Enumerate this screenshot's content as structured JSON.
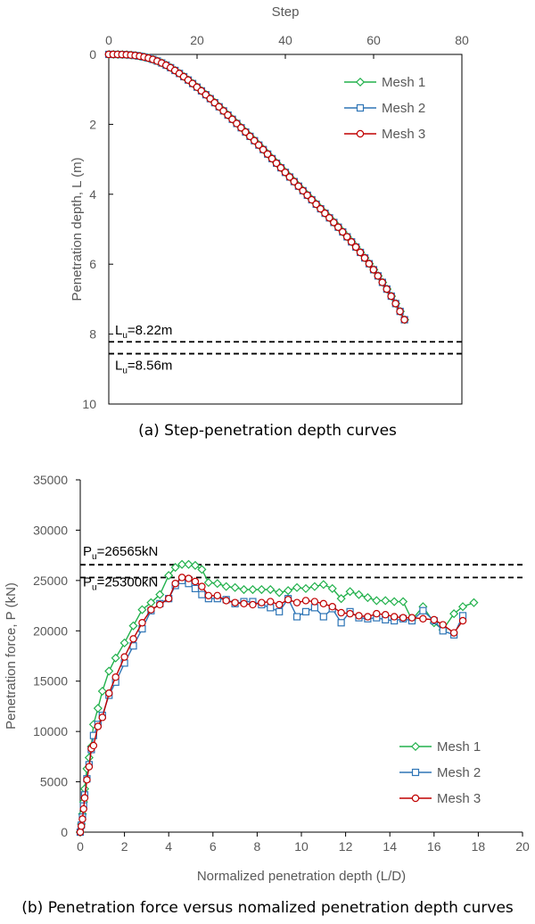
{
  "chart_data": [
    {
      "type": "line",
      "caption": "(a) Step-penetration depth curves",
      "xlabel": "Step",
      "ylabel": "Penetration depth, L (m)",
      "xlim": [
        0,
        80
      ],
      "ylim": [
        0,
        10
      ],
      "x_axis_position": "top",
      "y_inverted": true,
      "x_ticks": [
        0,
        20,
        40,
        60,
        80
      ],
      "y_ticks": [
        0,
        2,
        4,
        6,
        8,
        10
      ],
      "grid": false,
      "legend_position": "top-right",
      "series": [
        {
          "name": "Mesh 1",
          "color": "#22b14c",
          "marker": "diamond",
          "x": [
            0,
            1,
            2,
            3,
            4,
            5,
            6,
            7,
            8,
            9,
            10,
            11,
            12,
            13,
            14,
            15,
            16,
            17,
            18,
            19,
            20,
            21,
            22,
            23,
            24,
            25,
            26,
            27,
            28,
            29,
            30,
            31,
            32,
            33,
            34,
            35,
            36,
            37,
            38,
            39,
            40,
            41,
            42,
            43,
            44,
            45,
            46,
            47,
            48,
            49,
            50,
            51,
            52,
            53,
            54,
            55,
            56,
            57,
            58,
            59,
            60,
            61,
            62,
            63,
            64,
            65,
            66,
            67
          ],
          "y": [
            0,
            0,
            0.001,
            0.004,
            0.009,
            0.018,
            0.031,
            0.05,
            0.074,
            0.105,
            0.144,
            0.19,
            0.245,
            0.308,
            0.379,
            0.459,
            0.545,
            0.637,
            0.733,
            0.833,
            0.936,
            1.043,
            1.153,
            1.266,
            1.381,
            1.498,
            1.616,
            1.736,
            1.856,
            1.976,
            2.098,
            2.22,
            2.344,
            2.468,
            2.594,
            2.722,
            2.851,
            2.981,
            3.112,
            3.243,
            3.375,
            3.507,
            3.638,
            3.769,
            3.899,
            4.028,
            4.157,
            4.285,
            4.415,
            4.544,
            4.675,
            4.807,
            4.942,
            5.078,
            5.218,
            5.362,
            5.51,
            5.663,
            5.822,
            5.987,
            6.158,
            6.335,
            6.52,
            6.713,
            6.915,
            7.127,
            7.351,
            7.589
          ]
        },
        {
          "name": "Mesh 2",
          "color": "#2e75b6",
          "marker": "square",
          "x": [
            0,
            1,
            2,
            3,
            4,
            5,
            6,
            7,
            8,
            9,
            10,
            11,
            12,
            13,
            14,
            15,
            16,
            17,
            18,
            19,
            20,
            21,
            22,
            23,
            24,
            25,
            26,
            27,
            28,
            29,
            30,
            31,
            32,
            33,
            34,
            35,
            36,
            37,
            38,
            39,
            40,
            41,
            42,
            43,
            44,
            45,
            46,
            47,
            48,
            49,
            50,
            51,
            52,
            53,
            54,
            55,
            56,
            57,
            58,
            59,
            60,
            61,
            62,
            63,
            64,
            65,
            66,
            67
          ],
          "y": [
            0,
            0,
            0.001,
            0.004,
            0.009,
            0.018,
            0.031,
            0.05,
            0.074,
            0.105,
            0.144,
            0.19,
            0.245,
            0.308,
            0.379,
            0.459,
            0.545,
            0.637,
            0.733,
            0.833,
            0.936,
            1.043,
            1.153,
            1.266,
            1.381,
            1.498,
            1.616,
            1.736,
            1.856,
            1.976,
            2.098,
            2.22,
            2.344,
            2.468,
            2.594,
            2.722,
            2.851,
            2.981,
            3.112,
            3.243,
            3.375,
            3.507,
            3.638,
            3.769,
            3.899,
            4.028,
            4.157,
            4.285,
            4.415,
            4.544,
            4.675,
            4.807,
            4.942,
            5.078,
            5.218,
            5.362,
            5.51,
            5.663,
            5.822,
            5.987,
            6.158,
            6.335,
            6.52,
            6.713,
            6.915,
            7.127,
            7.351,
            7.589
          ]
        },
        {
          "name": "Mesh 3",
          "color": "#c00000",
          "marker": "circle",
          "x": [
            0,
            1,
            2,
            3,
            4,
            5,
            6,
            7,
            8,
            9,
            10,
            11,
            12,
            13,
            14,
            15,
            16,
            17,
            18,
            19,
            20,
            21,
            22,
            23,
            24,
            25,
            26,
            27,
            28,
            29,
            30,
            31,
            32,
            33,
            34,
            35,
            36,
            37,
            38,
            39,
            40,
            41,
            42,
            43,
            44,
            45,
            46,
            47,
            48,
            49,
            50,
            51,
            52,
            53,
            54,
            55,
            56,
            57,
            58,
            59,
            60,
            61,
            62,
            63,
            64,
            65,
            66,
            67
          ],
          "y": [
            0,
            0,
            0.001,
            0.004,
            0.009,
            0.018,
            0.031,
            0.05,
            0.074,
            0.105,
            0.144,
            0.19,
            0.245,
            0.308,
            0.379,
            0.459,
            0.545,
            0.637,
            0.733,
            0.833,
            0.936,
            1.043,
            1.153,
            1.266,
            1.381,
            1.498,
            1.616,
            1.736,
            1.856,
            1.976,
            2.098,
            2.22,
            2.344,
            2.468,
            2.594,
            2.722,
            2.851,
            2.981,
            3.112,
            3.243,
            3.375,
            3.507,
            3.638,
            3.769,
            3.899,
            4.028,
            4.157,
            4.285,
            4.415,
            4.544,
            4.675,
            4.807,
            4.942,
            5.078,
            5.218,
            5.362,
            5.51,
            5.663,
            5.822,
            5.987,
            6.158,
            6.335,
            6.52,
            6.713,
            6.915,
            7.127,
            7.351,
            7.589
          ]
        }
      ],
      "reference_lines": [
        {
          "axis": "y",
          "value": 8.22,
          "label_main": "L",
          "label_sub": "u",
          "label_rest": "=8.22m"
        },
        {
          "axis": "y",
          "value": 8.56,
          "label_main": "L",
          "label_sub": "u",
          "label_rest": "=8.56m"
        }
      ]
    },
    {
      "type": "line",
      "caption": "(b) Penetration force versus nomalized penetration depth curves",
      "xlabel": "Normalized penetration depth (L/D)",
      "ylabel": "Penetration force, P (kN)",
      "xlim": [
        0,
        20
      ],
      "ylim": [
        0,
        35000
      ],
      "x_ticks": [
        0,
        2,
        4,
        6,
        8,
        10,
        12,
        14,
        16,
        18,
        20
      ],
      "y_ticks": [
        0,
        5000,
        10000,
        15000,
        20000,
        25000,
        30000,
        35000
      ],
      "grid": false,
      "legend_position": "bottom-right",
      "series": [
        {
          "name": "Mesh 1",
          "color": "#22b14c",
          "marker": "diamond",
          "x": [
            0,
            0.05,
            0.1,
            0.15,
            0.2,
            0.3,
            0.4,
            0.5,
            0.6,
            0.8,
            1.0,
            1.3,
            1.6,
            2.0,
            2.4,
            2.8,
            3.2,
            3.6,
            4.0,
            4.3,
            4.6,
            4.9,
            5.2,
            5.5,
            5.8,
            6.2,
            6.6,
            7.0,
            7.4,
            7.8,
            8.2,
            8.6,
            9.0,
            9.4,
            9.8,
            10.2,
            10.6,
            11.0,
            11.4,
            11.8,
            12.2,
            12.6,
            13.0,
            13.4,
            13.8,
            14.2,
            14.6,
            15.0,
            15.5,
            16.0,
            16.4,
            16.9,
            17.3,
            17.8
          ],
          "y": [
            0,
            800,
            1800,
            3000,
            4300,
            6300,
            7400,
            8500,
            10700,
            12300,
            14000,
            16000,
            17300,
            18800,
            20500,
            22100,
            22800,
            23600,
            25500,
            26300,
            26600,
            26600,
            26500,
            26100,
            24800,
            24700,
            24400,
            24300,
            24100,
            24100,
            24100,
            24100,
            23800,
            24000,
            24300,
            24200,
            24400,
            24600,
            24200,
            23200,
            23900,
            23600,
            23300,
            23000,
            23000,
            22900,
            22900,
            21100,
            22400,
            20800,
            20100,
            21700,
            22400,
            22800
          ]
        },
        {
          "name": "Mesh 2",
          "color": "#2e75b6",
          "marker": "square",
          "x": [
            0,
            0.05,
            0.1,
            0.15,
            0.2,
            0.3,
            0.4,
            0.5,
            0.6,
            0.8,
            1.0,
            1.3,
            1.6,
            2.0,
            2.4,
            2.8,
            3.2,
            3.6,
            4.0,
            4.3,
            4.6,
            4.9,
            5.2,
            5.5,
            5.8,
            6.2,
            6.6,
            7.0,
            7.4,
            7.8,
            8.2,
            8.6,
            9.0,
            9.4,
            9.8,
            10.2,
            10.6,
            11.0,
            11.4,
            11.8,
            12.2,
            12.6,
            13.0,
            13.4,
            13.8,
            14.2,
            14.6,
            15.0,
            15.5,
            16.0,
            16.4,
            16.9,
            17.3
          ],
          "y": [
            0,
            700,
            1500,
            2600,
            3700,
            5300,
            6700,
            8200,
            9600,
            10700,
            11600,
            13600,
            14900,
            16800,
            18500,
            20200,
            22000,
            22700,
            23200,
            24500,
            25000,
            24700,
            24200,
            23600,
            23200,
            23200,
            23100,
            22700,
            22900,
            22900,
            22600,
            22300,
            21900,
            23200,
            21400,
            21900,
            22300,
            21400,
            22200,
            20800,
            21900,
            21300,
            21200,
            21300,
            21100,
            21000,
            21200,
            21000,
            22000,
            21000,
            20000,
            19600,
            21500
          ]
        },
        {
          "name": "Mesh 3",
          "color": "#c00000",
          "marker": "circle",
          "x": [
            0,
            0.05,
            0.1,
            0.15,
            0.2,
            0.3,
            0.4,
            0.5,
            0.6,
            0.8,
            1.0,
            1.3,
            1.6,
            2.0,
            2.4,
            2.8,
            3.2,
            3.6,
            4.0,
            4.3,
            4.6,
            4.9,
            5.2,
            5.5,
            5.8,
            6.2,
            6.6,
            7.0,
            7.4,
            7.8,
            8.2,
            8.6,
            9.0,
            9.4,
            9.8,
            10.2,
            10.6,
            11.0,
            11.4,
            11.8,
            12.2,
            12.6,
            13.0,
            13.4,
            13.8,
            14.2,
            14.6,
            15.0,
            15.5,
            16.0,
            16.4,
            16.9,
            17.3
          ],
          "y": [
            0,
            600,
            1300,
            2300,
            3400,
            5200,
            6500,
            8300,
            8600,
            10500,
            11400,
            13800,
            15400,
            17400,
            19200,
            20800,
            22100,
            22600,
            23200,
            24700,
            25300,
            25200,
            24900,
            24400,
            23500,
            23500,
            23000,
            22800,
            22700,
            22600,
            22800,
            22900,
            22600,
            23100,
            22800,
            23000,
            22900,
            22700,
            22400,
            21800,
            21700,
            21500,
            21400,
            21700,
            21600,
            21400,
            21300,
            21300,
            21200,
            21100,
            20600,
            19800,
            21000
          ]
        }
      ],
      "reference_lines": [
        {
          "axis": "y",
          "value": 26565,
          "label_main": "P",
          "label_sub": "u",
          "label_rest": "=26565kN"
        },
        {
          "axis": "y",
          "value": 25300,
          "label_main": "P",
          "label_sub": "u",
          "label_rest": "=25300kN"
        }
      ]
    }
  ]
}
